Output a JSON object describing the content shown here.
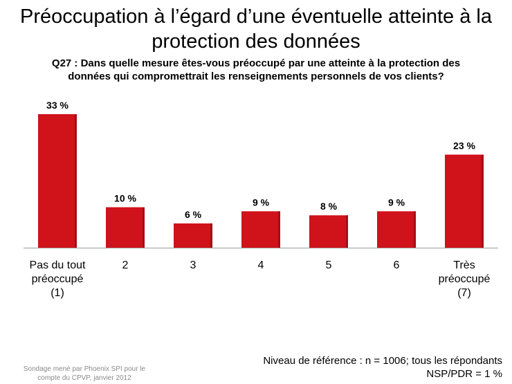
{
  "title_line1": "Préoccupation à l’égard d’une éventuelle atteinte à la",
  "title_line2": "protection des données",
  "question_line1": "Q27 : Dans quelle mesure êtes-vous préoccupé par une atteinte à la protection des",
  "question_line2": "données qui compromettrait les renseignements personnels de vos clients?",
  "footnote_left": "Sondage mené par Phoenix SPI pour le compte du CPVP, janvier 2012",
  "footnote_right_line1": "Niveau de référence : n = 1006; tous les répondants",
  "footnote_right_line2": "NSP/PDR = 1 %",
  "colors": {
    "bar": "#d0121b",
    "axis": "#999999"
  },
  "chart_data": {
    "type": "bar",
    "categories": [
      [
        "Pas du tout",
        "préoccupé",
        "(1)"
      ],
      [
        "2"
      ],
      [
        "3"
      ],
      [
        "4"
      ],
      [
        "5"
      ],
      [
        "6"
      ],
      [
        "Très",
        "préoccupé",
        "(7)"
      ]
    ],
    "values": [
      33,
      10,
      6,
      9,
      8,
      9,
      23
    ],
    "value_labels": [
      "33 %",
      "10 %",
      "6 %",
      "9 %",
      "8 %",
      "9 %",
      "23 %"
    ],
    "ylim": [
      0,
      35
    ],
    "grid": false,
    "legend": "none"
  }
}
